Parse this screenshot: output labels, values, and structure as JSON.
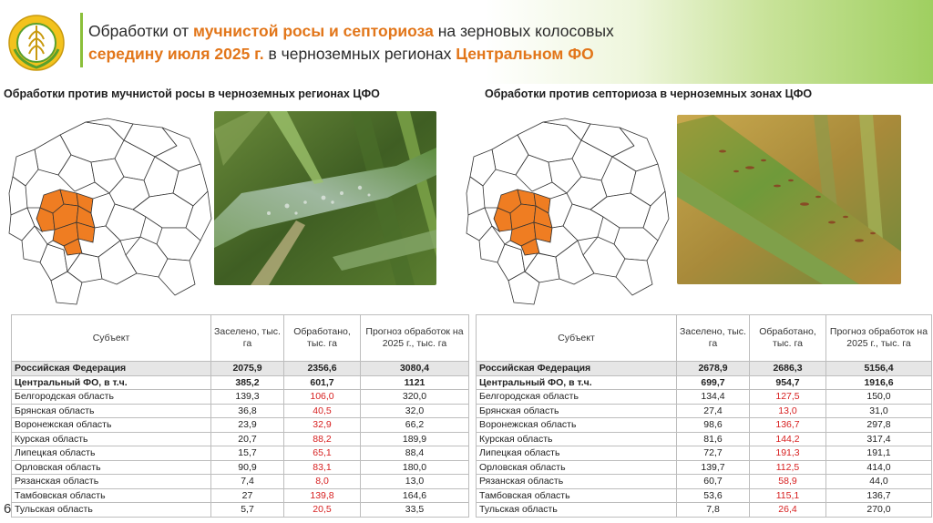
{
  "header": {
    "title_p1": "Обработки от ",
    "title_h1": "мучнистой росы и септориоза",
    "title_p2": " на зерновых колосовых ",
    "title_h2": "середину июля 2025 г.",
    "title_p3": " в черноземных регионах ",
    "title_h3": "Центральном ФО"
  },
  "colors": {
    "accent": "#e2761a",
    "highlight_region": "#ef7d22",
    "over_value": "#d72020",
    "header_green": "#8bbf3a"
  },
  "left": {
    "subtitle": "Обработки против мучнистой росы в черноземных регионах ЦФО",
    "photo": "wheat-leaf-powdery-mildew",
    "table": {
      "headers": [
        "Субъект",
        "Заселено, тыс. га",
        "Обработано, тыс. га",
        "Прогноз обработок на 2025 г., тыс. га"
      ],
      "rows": [
        {
          "name": "Российская Федерация",
          "settled": "2075,9",
          "treated": "2356,6",
          "forecast": "3080,4",
          "bold": true,
          "shaded": true,
          "red": false
        },
        {
          "name": "Центральный ФО, в т.ч.",
          "settled": "385,2",
          "treated": "601,7",
          "forecast": "1121",
          "bold": true,
          "shaded": false,
          "red": false
        },
        {
          "name": "Белгородская область",
          "settled": "139,3",
          "treated": "106,0",
          "forecast": "320,0",
          "bold": false,
          "shaded": false,
          "red": true
        },
        {
          "name": "Брянская область",
          "settled": "36,8",
          "treated": "40,5",
          "forecast": "32,0",
          "bold": false,
          "shaded": false,
          "red": true
        },
        {
          "name": "Воронежская область",
          "settled": "23,9",
          "treated": "32,9",
          "forecast": "66,2",
          "bold": false,
          "shaded": false,
          "red": true
        },
        {
          "name": "Курская область",
          "settled": "20,7",
          "treated": "88,2",
          "forecast": "189,9",
          "bold": false,
          "shaded": false,
          "red": true
        },
        {
          "name": "Липецкая область",
          "settled": "15,7",
          "treated": "65,1",
          "forecast": "88,4",
          "bold": false,
          "shaded": false,
          "red": true
        },
        {
          "name": "Орловская область",
          "settled": "90,9",
          "treated": "83,1",
          "forecast": "180,0",
          "bold": false,
          "shaded": false,
          "red": true
        },
        {
          "name": "Рязанская область",
          "settled": "7,4",
          "treated": "8,0",
          "forecast": "13,0",
          "bold": false,
          "shaded": false,
          "red": true
        },
        {
          "name": "Тамбовская область",
          "settled": "27",
          "treated": "139,8",
          "forecast": "164,6",
          "bold": false,
          "shaded": false,
          "red": true
        },
        {
          "name": "Тульская область",
          "settled": "5,7",
          "treated": "20,5",
          "forecast": "33,5",
          "bold": false,
          "shaded": false,
          "red": true
        }
      ]
    }
  },
  "right": {
    "subtitle": "Обработки против септориоза в черноземных зонах ЦФО",
    "photo": "wheat-leaf-septoria",
    "table": {
      "headers": [
        "Субъект",
        "Заселено, тыс. га",
        "Обработано, тыс. га",
        "Прогноз обработок на 2025 г., тыс. га"
      ],
      "rows": [
        {
          "name": "Российская Федерация",
          "settled": "2678,9",
          "treated": "2686,3",
          "forecast": "5156,4",
          "bold": true,
          "shaded": true,
          "red": false
        },
        {
          "name": "Центральный ФО, в т.ч.",
          "settled": "699,7",
          "treated": "954,7",
          "forecast": "1916,6",
          "bold": true,
          "shaded": false,
          "red": false
        },
        {
          "name": "Белгородская область",
          "settled": "134,4",
          "treated": "127,5",
          "forecast": "150,0",
          "bold": false,
          "shaded": false,
          "red": true
        },
        {
          "name": "Брянская область",
          "settled": "27,4",
          "treated": "13,0",
          "forecast": "31,0",
          "bold": false,
          "shaded": false,
          "red": true
        },
        {
          "name": "Воронежская область",
          "settled": "98,6",
          "treated": "136,7",
          "forecast": "297,8",
          "bold": false,
          "shaded": false,
          "red": true
        },
        {
          "name": "Курская область",
          "settled": "81,6",
          "treated": "144,2",
          "forecast": "317,4",
          "bold": false,
          "shaded": false,
          "red": true
        },
        {
          "name": "Липецкая область",
          "settled": "72,7",
          "treated": "191,3",
          "forecast": "191,1",
          "bold": false,
          "shaded": false,
          "red": true
        },
        {
          "name": "Орловская область",
          "settled": "139,7",
          "treated": "112,5",
          "forecast": "414,0",
          "bold": false,
          "shaded": false,
          "red": true
        },
        {
          "name": "Рязанская область",
          "settled": "60,7",
          "treated": "58,9",
          "forecast": "44,0",
          "bold": false,
          "shaded": false,
          "red": true
        },
        {
          "name": "Тамбовская область",
          "settled": "53,6",
          "treated": "115,1",
          "forecast": "136,7",
          "bold": false,
          "shaded": false,
          "red": true
        },
        {
          "name": "Тульская область",
          "settled": "7,8",
          "treated": "26,4",
          "forecast": "270,0",
          "bold": false,
          "shaded": false,
          "red": true
        }
      ]
    }
  },
  "page_number": "6"
}
